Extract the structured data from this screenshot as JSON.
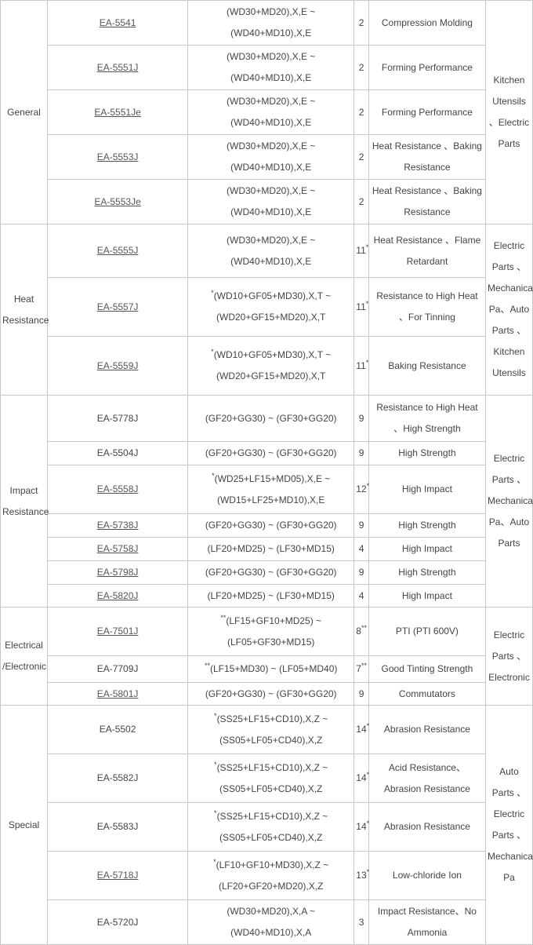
{
  "groups": [
    {
      "category": "General",
      "applications": "Kitchen Utensils 、Electric Parts",
      "rows": [
        {
          "code": "EA-5541",
          "link": true,
          "pre": "",
          "grade": [
            "(WD30+MD20),X,E ~",
            "(WD40+MD10),X,E"
          ],
          "content": "2",
          "sup": "",
          "feature": "Compression Molding"
        },
        {
          "code": "EA-5551J",
          "link": true,
          "pre": "",
          "grade": [
            "(WD30+MD20),X,E ~",
            "(WD40+MD10),X,E"
          ],
          "content": "2",
          "sup": "",
          "feature": "Forming Performance"
        },
        {
          "code": "EA-5551Je",
          "link": true,
          "pre": "",
          "grade": [
            "(WD30+MD20),X,E ~",
            "(WD40+MD10),X,E"
          ],
          "content": "2",
          "sup": "",
          "feature": "Forming Performance"
        },
        {
          "code": "EA-5553J",
          "link": true,
          "pre": "",
          "grade": [
            "(WD30+MD20),X,E ~",
            "(WD40+MD10),X,E"
          ],
          "content": "2",
          "sup": "",
          "feature": "Heat Resistance 、Baking Resistance"
        },
        {
          "code": "EA-5553Je",
          "link": true,
          "pre": "",
          "grade": [
            "(WD30+MD20),X,E ~",
            "(WD40+MD10),X,E"
          ],
          "content": "2",
          "sup": "",
          "feature": "Heat Resistance 、Baking Resistance"
        }
      ]
    },
    {
      "category": "Heat Resistance",
      "applications": "Electric Parts 、Mechanical Pa、Auto Parts 、Kitchen Utensils",
      "rows": [
        {
          "code": "EA-5555J",
          "link": true,
          "pre": "",
          "grade": [
            "(WD30+MD20),X,E ~",
            "(WD40+MD10),X,E"
          ],
          "content": "11",
          "sup": "*",
          "feature": "Heat Resistance 、Flame Retardant"
        },
        {
          "code": "EA-5557J",
          "link": true,
          "pre": "*",
          "grade": [
            "(WD10+GF05+MD30),X,T ~",
            "(WD20+GF15+MD20),X,T"
          ],
          "content": "11",
          "sup": "*",
          "feature": "Resistance to High Heat 、For Tinning"
        },
        {
          "code": "EA-5559J",
          "link": true,
          "pre": "*",
          "grade": [
            "(WD10+GF05+MD30),X,T ~",
            "(WD20+GF15+MD20),X,T"
          ],
          "content": "11",
          "sup": "*",
          "feature": "Baking Resistance"
        }
      ]
    },
    {
      "category": "Impact Resistance",
      "applications": "Electric Parts 、Mechanical Pa、Auto Parts",
      "rows": [
        {
          "code": "EA-5778J",
          "link": false,
          "pre": "",
          "grade": [
            "(GF20+GG30) ~ (GF30+GG20)"
          ],
          "content": "9",
          "sup": "",
          "feature": "Resistance to High Heat 、High Strength"
        },
        {
          "code": "EA-5504J",
          "link": false,
          "pre": "",
          "grade": [
            "(GF20+GG30) ~ (GF30+GG20)"
          ],
          "content": "9",
          "sup": "",
          "feature": "High Strength"
        },
        {
          "code": "EA-5558J",
          "link": true,
          "pre": "*",
          "grade": [
            "(WD25+LF15+MD05),X,E ~",
            "(WD15+LF25+MD10),X,E"
          ],
          "content": "12",
          "sup": "*",
          "feature": "High Impact"
        },
        {
          "code": "EA-5738J",
          "link": true,
          "pre": "",
          "grade": [
            "(GF20+GG30) ~ (GF30+GG20)"
          ],
          "content": "9",
          "sup": "",
          "feature": "High Strength"
        },
        {
          "code": "EA-5758J",
          "link": true,
          "pre": "",
          "grade": [
            "(LF20+MD25) ~ (LF30+MD15)"
          ],
          "content": "4",
          "sup": "",
          "feature": "High Impact"
        },
        {
          "code": "EA-5798J",
          "link": true,
          "pre": "",
          "grade": [
            "(GF20+GG30) ~ (GF30+GG20)"
          ],
          "content": "9",
          "sup": "",
          "feature": "High Strength"
        },
        {
          "code": "EA-5820J",
          "link": true,
          "pre": "",
          "grade": [
            "(LF20+MD25) ~ (LF30+MD15)"
          ],
          "content": "4",
          "sup": "",
          "feature": "High Impact"
        }
      ]
    },
    {
      "category": "Electrical /Electronic",
      "applications": "Electric Parts 、Electronic",
      "rows": [
        {
          "code": "EA-7501J",
          "link": true,
          "pre": "**",
          "grade": [
            "(LF15+GF10+MD25) ~",
            "(LF05+GF30+MD15)"
          ],
          "content": "8",
          "sup": "**",
          "feature": "PTI (PTI 600V)"
        },
        {
          "code": "EA-7709J",
          "link": false,
          "pre": "**",
          "grade": [
            "(LF15+MD30) ~ (LF05+MD40)"
          ],
          "content": "7",
          "sup": "**",
          "feature": "Good Tinting Strength"
        },
        {
          "code": "EA-5801J",
          "link": true,
          "pre": "",
          "grade": [
            "(GF20+GG30) ~ (GF30+GG20)"
          ],
          "content": "9",
          "sup": "",
          "feature": "Commutators"
        }
      ]
    },
    {
      "category": "Special",
      "applications": "Auto Parts 、Electric Parts 、Mechanical Pa",
      "rows": [
        {
          "code": "EA-5502",
          "link": false,
          "pre": "*",
          "grade": [
            "(SS25+LF15+CD10),X,Z ~",
            "(SS05+LF05+CD40),X,Z"
          ],
          "content": "14",
          "sup": "*",
          "feature": "Abrasion Resistance"
        },
        {
          "code": "EA-5582J",
          "link": false,
          "pre": "*",
          "grade": [
            "(SS25+LF15+CD10),X,Z ~",
            "(SS05+LF05+CD40),X,Z"
          ],
          "content": "14",
          "sup": "*",
          "feature": "Acid Resistance、Abrasion Resistance"
        },
        {
          "code": "EA-5583J",
          "link": false,
          "pre": "*",
          "grade": [
            "(SS25+LF15+CD10),X,Z ~",
            "(SS05+LF05+CD40),X,Z"
          ],
          "content": "14",
          "sup": "*",
          "feature": "Abrasion Resistance"
        },
        {
          "code": "EA-5718J",
          "link": true,
          "pre": "*",
          "grade": [
            "(LF10+GF10+MD30),X,Z ~",
            "(LF20+GF20+MD20),X,Z"
          ],
          "content": "13",
          "sup": "*",
          "feature": "Low-chloride Ion"
        },
        {
          "code": "EA-5720J",
          "link": false,
          "pre": "",
          "grade": [
            "(WD30+MD20),X,A ~",
            "(WD40+MD10),X,A"
          ],
          "content": "3",
          "sup": "",
          "feature": "Impact Resistance、No Ammonia"
        }
      ]
    }
  ]
}
